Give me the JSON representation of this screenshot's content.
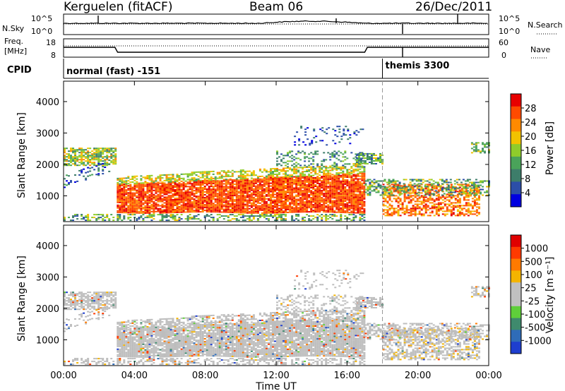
{
  "header": {
    "station": "Kerguelen (fitACF)",
    "beam": "Beam 06",
    "date": "26/Dec/2011"
  },
  "top_panels": {
    "nsky_label": "N.Sky",
    "nsearch_label": "N.Search",
    "count_ticks": [
      "10^5",
      "10^0"
    ],
    "freq_label_line1": "Freq.",
    "freq_label_line2": "[MHz]",
    "freq_ticks": [
      "18",
      "8"
    ],
    "nave_label": "Nave",
    "nave_ticks": [
      "60",
      "0"
    ],
    "cpid_label": "CPID",
    "cpid_modes": [
      {
        "name": "normal (fast) -151",
        "start_hour": 0
      },
      {
        "name": "themis 3300",
        "start_hour": 18
      }
    ]
  },
  "colors": {
    "power_scale": [
      "#0000e0",
      "#2c4ea8",
      "#3d7d6a",
      "#4aa35a",
      "#8fcc2b",
      "#f2c200",
      "#ff8a00",
      "#ff4a00",
      "#e80000"
    ],
    "velocity_scale": [
      "#1e3ecf",
      "#2f6cb8",
      "#3f8a6d",
      "#5fcf3a",
      "#c0c0c0",
      "#c0c0c0",
      "#f4b400",
      "#ff7a00",
      "#ff3a00",
      "#e00000"
    ],
    "scatter_gray": "#bdbdbd"
  },
  "chart_data": [
    {
      "type": "heatmap",
      "panel": "power",
      "xlabel": "",
      "ylabel": "Slant Range [km]",
      "x_range_hours": [
        0,
        24
      ],
      "ylim_km": [
        180,
        4650
      ],
      "y_ticks": [
        1000,
        2000,
        3000,
        4000
      ],
      "colorbar": {
        "label": "Power [dB]",
        "range": [
          0,
          32
        ],
        "tick_values": [
          4,
          8,
          12,
          16,
          20,
          24,
          28
        ]
      }
    },
    {
      "type": "heatmap",
      "panel": "velocity",
      "xlabel": "Time UT",
      "ylabel": "Slant Range [km]",
      "x_range_hours": [
        0,
        24
      ],
      "x_tick_labels": [
        "00:00",
        "04:00",
        "08:00",
        "12:00",
        "16:00",
        "20:00",
        "00:00"
      ],
      "ylim_km": [
        180,
        4650
      ],
      "y_ticks": [
        1000,
        2000,
        3000,
        4000
      ],
      "colorbar": {
        "label": "Velocity [m s⁻¹]",
        "tick_labels": [
          "1000",
          "500",
          "100",
          "25",
          "-25",
          "-100",
          "-500",
          "-1000"
        ]
      }
    }
  ]
}
